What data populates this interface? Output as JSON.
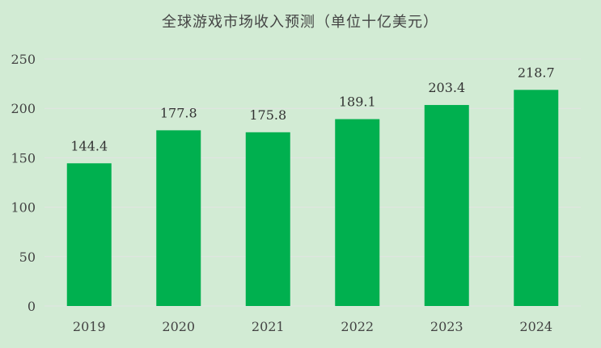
{
  "chart_data": {
    "type": "bar",
    "title": "全球游戏市场收入预测（单位十亿美元）",
    "categories": [
      "2019",
      "2020",
      "2021",
      "2022",
      "2023",
      "2024"
    ],
    "values": [
      144.4,
      177.8,
      175.8,
      189.1,
      203.4,
      218.7
    ],
    "value_labels": [
      "144.4",
      "177.8",
      "175.8",
      "189.1",
      "203.4",
      "218.7"
    ],
    "yticks": [
      "0",
      "50",
      "100",
      "150",
      "200",
      "250"
    ],
    "ylim": [
      0,
      250
    ],
    "xlabel": "",
    "ylabel": "",
    "grid": true,
    "legend": false,
    "colors": {
      "bar": "#00b04f",
      "grid": "#e3e3e3",
      "background": "#d2ebd4"
    }
  }
}
